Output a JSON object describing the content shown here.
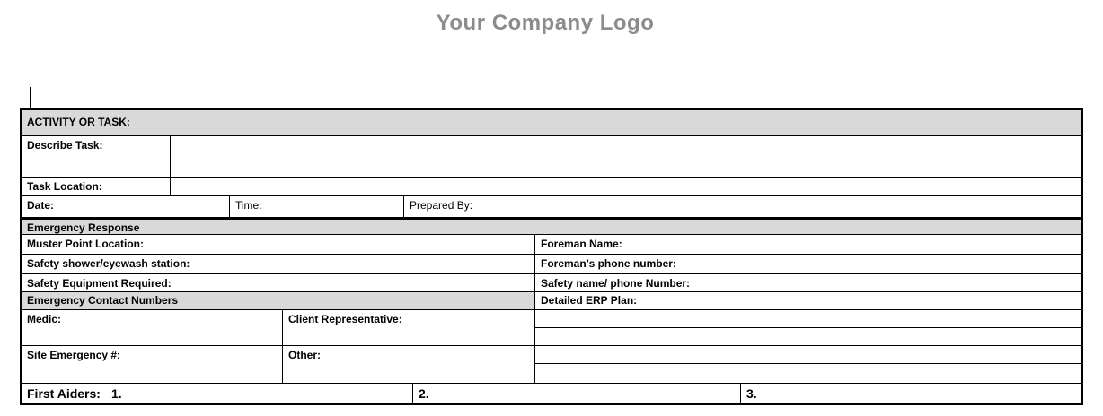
{
  "page": {
    "logo_text": "Your Company Logo"
  },
  "colors": {
    "header_fill": "#d9d9d9",
    "logo_gray": "#8c8c8c",
    "border": "#000000",
    "page_background": "#ffffff"
  },
  "table": {
    "activity_header": "ACTIVITY OR TASK:",
    "describe_task_label": "Describe Task:",
    "task_location_label": "Task Location:",
    "date_label": "Date:",
    "time_label": "Time:",
    "prepared_by_label": "Prepared By:",
    "emergency_response_header": "Emergency Response",
    "muster_point_label": "Muster Point Location:",
    "foreman_name_label": "Foreman Name:",
    "safety_shower_label": "Safety shower/eyewash station:",
    "foreman_phone_label": "Foreman’s phone number:",
    "safety_equipment_label": "Safety Equipment Required:",
    "safety_name_phone_label": "Safety name/ phone Number:",
    "emergency_contacts_header": "Emergency Contact Numbers",
    "detailed_erp_label": "Detailed ERP Plan:",
    "medic_label": "Medic:",
    "client_rep_label": "Client Representative:",
    "site_emergency_label": "Site Emergency #:",
    "other_label": "Other:",
    "first_aiders_label": "First Aiders:",
    "first_aider_1": "1.",
    "first_aider_2": "2.",
    "first_aider_3": "3.",
    "erp_blank_line_count": 4
  }
}
